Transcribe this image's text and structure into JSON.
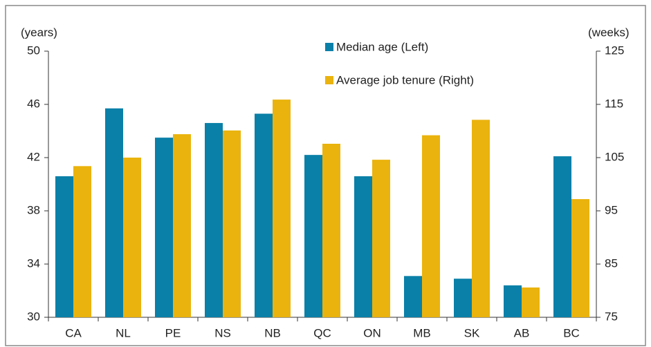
{
  "chart_data": {
    "type": "bar",
    "y_label": "(years)",
    "y2_label": "(weeks)",
    "categories": [
      "CA",
      "NL",
      "PE",
      "NS",
      "NB",
      "QC",
      "ON",
      "MB",
      "SK",
      "AB",
      "BC"
    ],
    "series": [
      {
        "name": "Median age (Left)",
        "color": "#0a80a8",
        "values": [
          40.6,
          45.7,
          43.5,
          44.6,
          45.3,
          42.2,
          40.6,
          33.1,
          32.9,
          32.4,
          42.1
        ]
      },
      {
        "name": "Average job tenure (Right)",
        "color": "#eab30d",
        "axis": "y2",
        "values": [
          103.4,
          105.0,
          109.4,
          110.1,
          115.9,
          107.6,
          104.6,
          109.2,
          112.1,
          80.6,
          97.2
        ]
      }
    ],
    "ylim": [
      30,
      50
    ],
    "yticks": [
      30,
      34,
      38,
      42,
      46,
      50
    ],
    "y2lim": [
      75,
      125
    ],
    "y2ticks": [
      75,
      85,
      95,
      105,
      115,
      125
    ],
    "grid": false,
    "legend": "top"
  }
}
